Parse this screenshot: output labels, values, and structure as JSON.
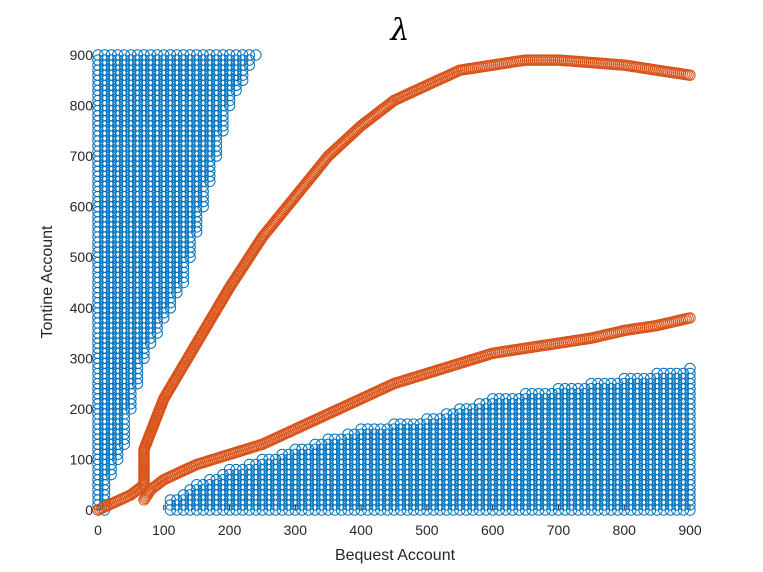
{
  "chart_data": {
    "type": "scatter",
    "title": "λ",
    "xlabel": "Bequest Account",
    "ylabel": "Tontine Account",
    "xlim": [
      0,
      900
    ],
    "ylim": [
      0,
      900
    ],
    "xticks": [
      "0",
      "100",
      "200",
      "300",
      "400",
      "500",
      "600",
      "700",
      "800",
      "900"
    ],
    "yticks": [
      "0",
      "100",
      "200",
      "300",
      "400",
      "500",
      "600",
      "700",
      "800",
      "900"
    ],
    "grid": false,
    "marker": "open-circle",
    "colors": {
      "blue": "#0072BD",
      "orange": "#D95319",
      "axis": "#262626"
    },
    "grid_step": 10,
    "regions": [
      {
        "name": "",
        "color": "#0072BD",
        "boundary_upper_left": {
          "y": [
            900,
            850,
            800,
            750,
            700,
            650,
            600,
            550,
            500,
            450,
            400,
            350,
            300,
            250,
            200,
            150,
            130,
            100,
            70
          ],
          "x_max": [
            240,
            220,
            200,
            190,
            180,
            170,
            160,
            150,
            140,
            130,
            110,
            90,
            70,
            60,
            50,
            40,
            40,
            30,
            20
          ]
        },
        "boundary_lower_right": {
          "x": [
            110,
            150,
            200,
            250,
            300,
            350,
            400,
            450,
            500,
            550,
            600,
            650,
            700,
            750,
            800,
            850,
            900
          ],
          "y_max": [
            20,
            50,
            80,
            100,
            120,
            140,
            160,
            170,
            180,
            200,
            220,
            230,
            240,
            250,
            260,
            270,
            280
          ]
        }
      }
    ],
    "series": [
      {
        "name": "",
        "color": "#D95319",
        "x": [
          0,
          50,
          70,
          70,
          100,
          150,
          200,
          250,
          300,
          350,
          400,
          450,
          500,
          550,
          600,
          650,
          700,
          750,
          800,
          850,
          900
        ],
        "y": [
          0,
          30,
          50,
          120,
          220,
          330,
          440,
          540,
          620,
          700,
          760,
          810,
          840,
          870,
          880,
          890,
          890,
          885,
          880,
          870,
          860
        ]
      },
      {
        "name": "",
        "color": "#D95319",
        "x": [
          70,
          80,
          100,
          150,
          200,
          250,
          300,
          350,
          400,
          450,
          500,
          550,
          600,
          650,
          700,
          750,
          800,
          850,
          900
        ],
        "y": [
          20,
          40,
          60,
          90,
          110,
          130,
          160,
          190,
          220,
          250,
          270,
          290,
          310,
          320,
          330,
          340,
          355,
          365,
          380
        ]
      }
    ]
  }
}
